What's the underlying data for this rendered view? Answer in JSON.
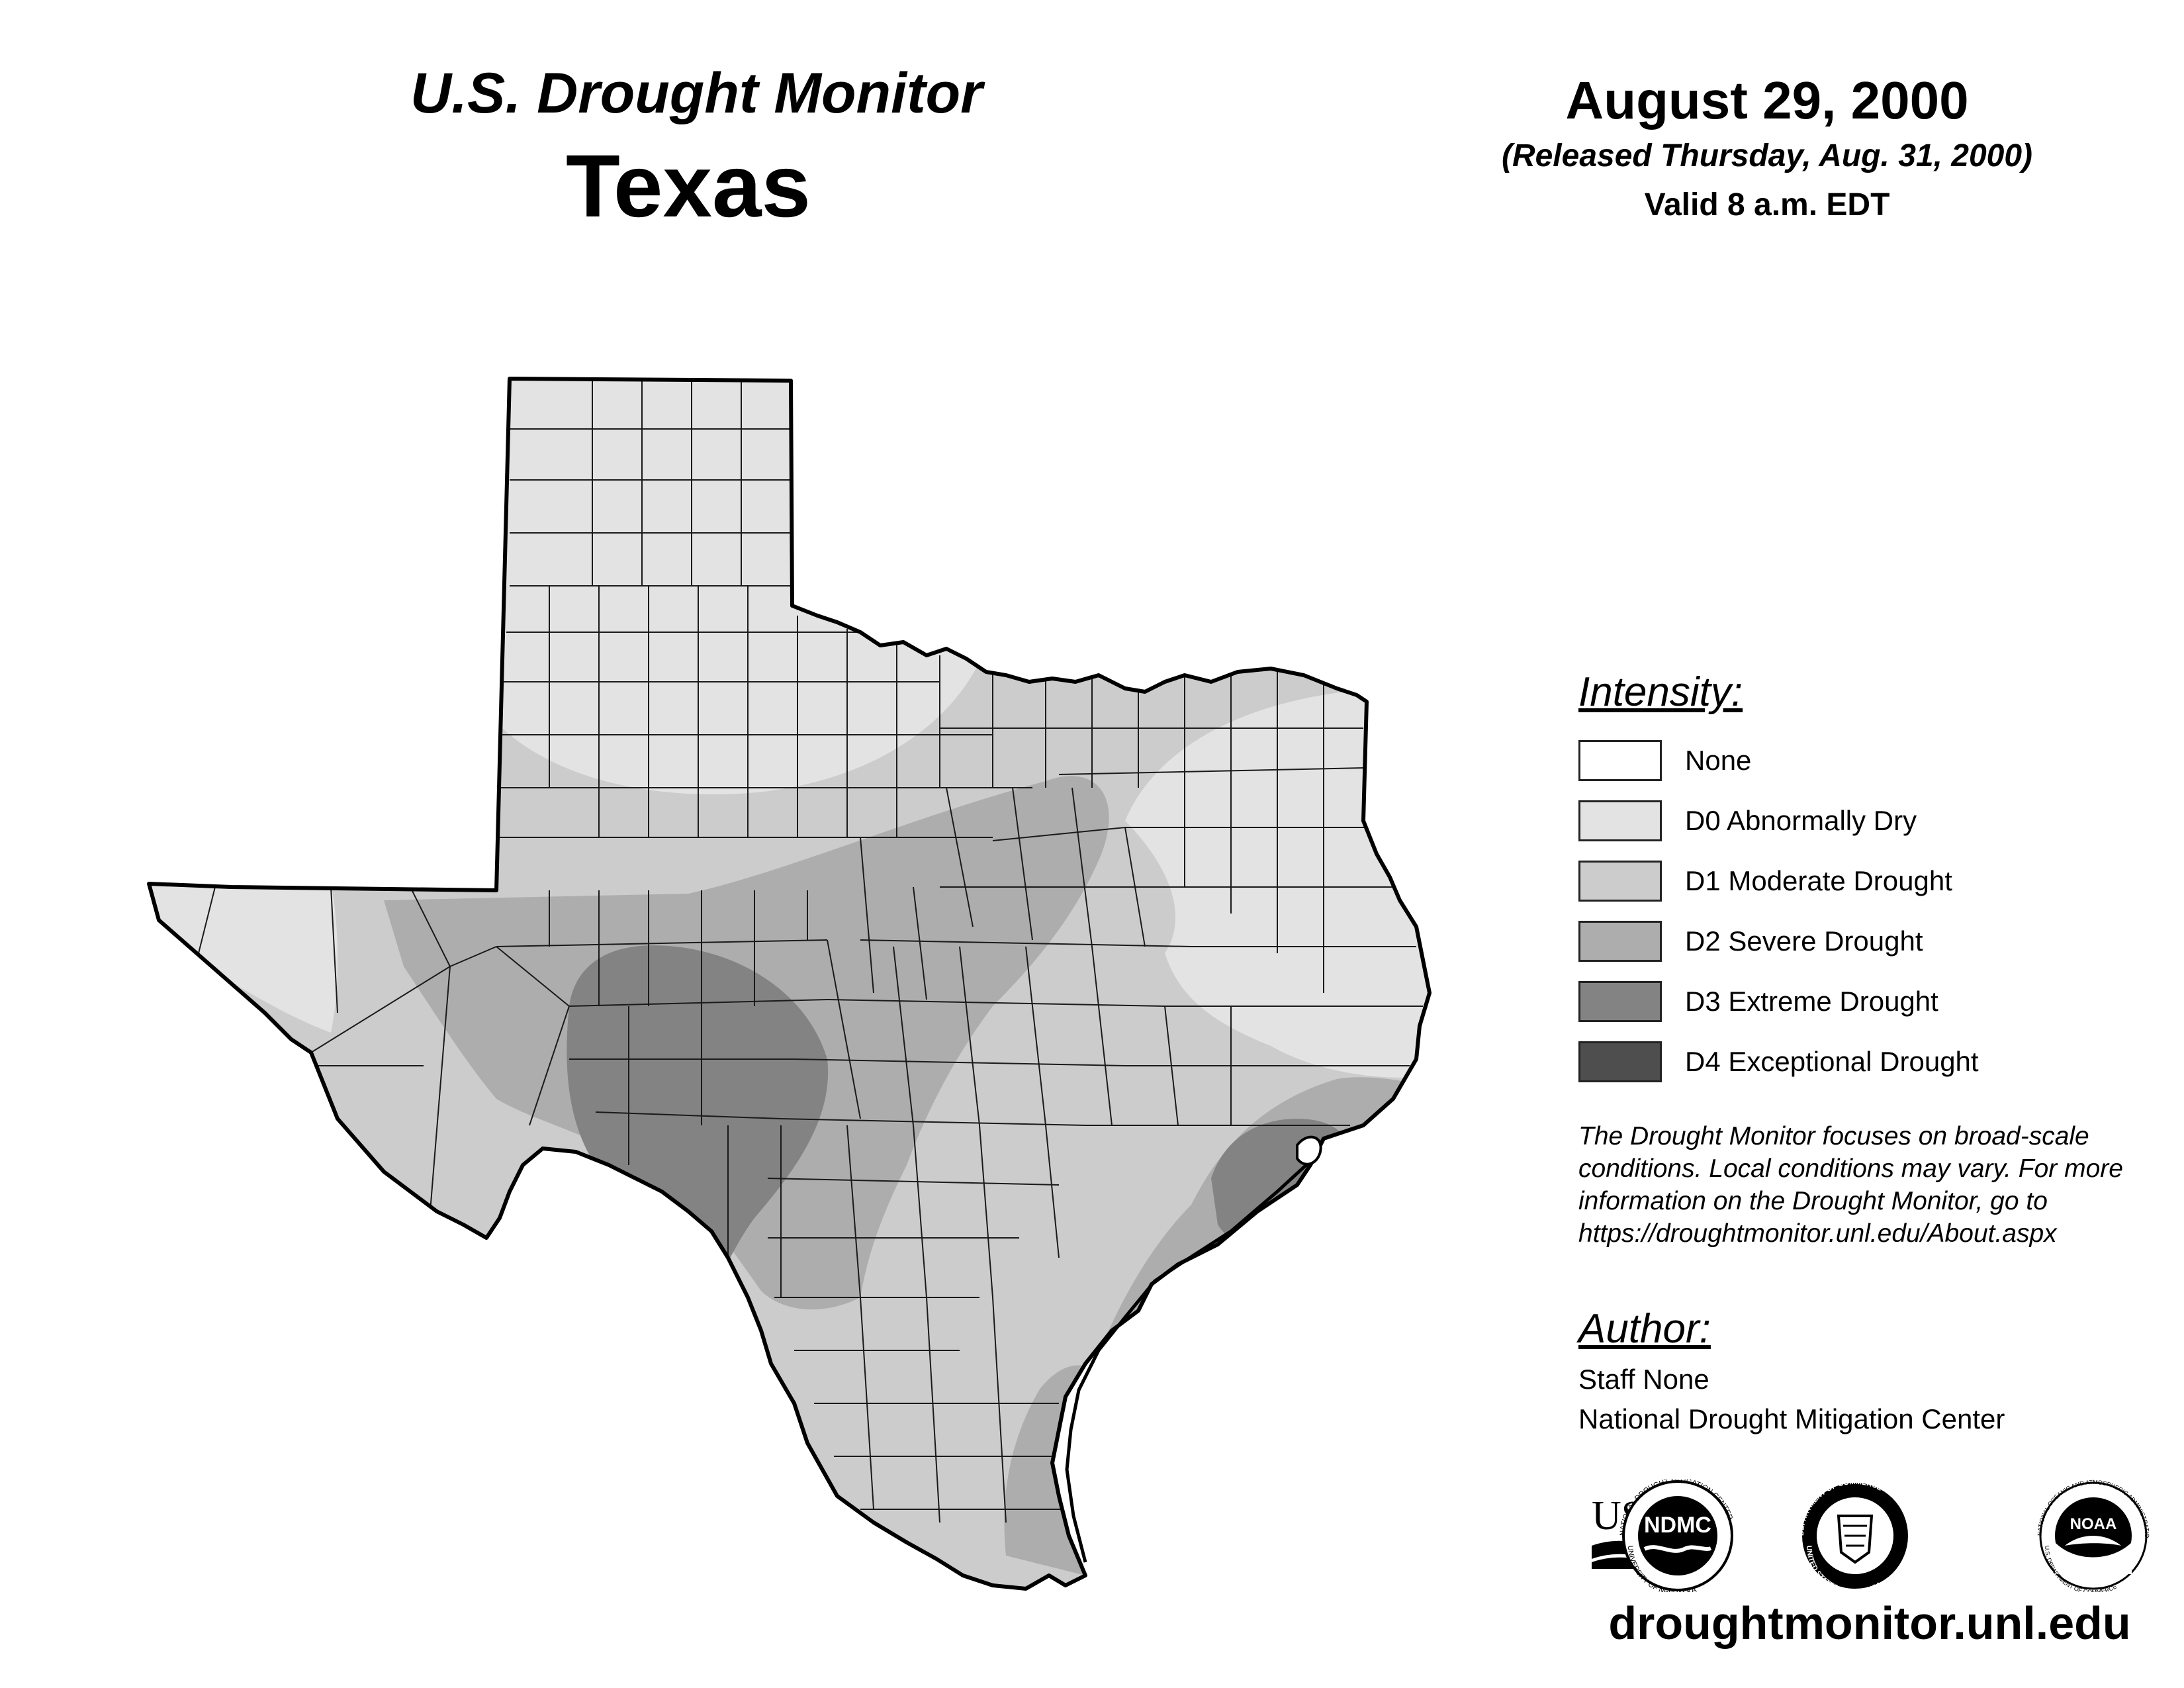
{
  "header": {
    "title": "U.S. Drought Monitor",
    "state": "Texas",
    "date": "August 29, 2000",
    "released": "(Released Thursday, Aug. 31, 2000)",
    "valid": "Valid 8 a.m. EDT"
  },
  "legend": {
    "title": "Intensity:",
    "items": [
      {
        "label": "None",
        "color": "#ffffff"
      },
      {
        "label": "D0 Abnormally Dry",
        "color": "#e3e3e3"
      },
      {
        "label": "D1 Moderate Drought",
        "color": "#cccccc"
      },
      {
        "label": "D2 Severe Drought",
        "color": "#adadad"
      },
      {
        "label": "D3 Extreme Drought",
        "color": "#838383"
      },
      {
        "label": "D4 Exceptional Drought",
        "color": "#4e4e4e"
      }
    ]
  },
  "disclaimer": [
    "The Drought Monitor focuses on broad-scale",
    "conditions. Local conditions may vary. For more",
    "information on the Drought Monitor, go to",
    "https://droughtmonitor.unl.edu/About.aspx"
  ],
  "author": {
    "title": "Author:",
    "name": "Staff None",
    "org": "National Drought Mitigation Center"
  },
  "logos": {
    "usda": "USDA",
    "ndmc": "NDMC",
    "ndmc_ring": "NATIONAL DROUGHT MITIGATION CENTER",
    "ndmc_ring_bottom": "UNIVERSITY OF NEBRASKA",
    "doc_ring": "DEPARTMENT OF COMMERCE",
    "doc_ring_bottom": "UNITED STATES OF AMERICA",
    "noaa": "NOAA",
    "noaa_ring": "NATIONAL OCEANIC AND ATMOSPHERIC ADMINISTRATION",
    "noaa_ring_bottom": "U.S. DEPARTMENT OF COMMERCE"
  },
  "website": "droughtmonitor.unl.edu"
}
